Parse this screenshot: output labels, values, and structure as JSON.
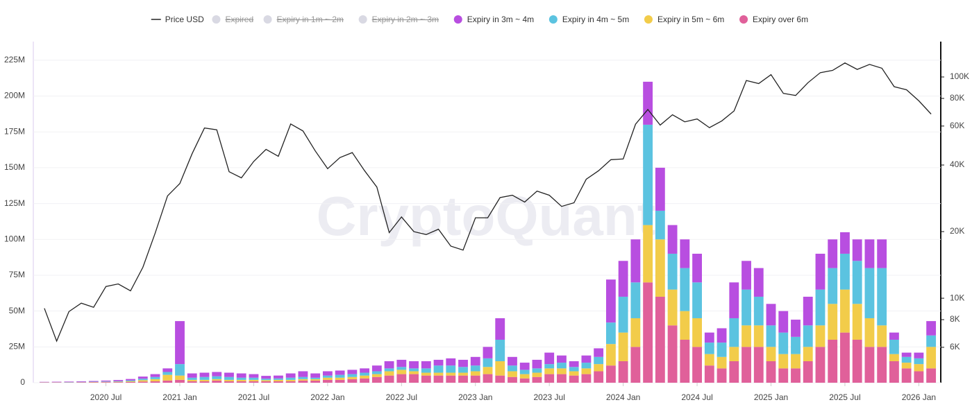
{
  "chart_data": {
    "type": "stacked-bar-line",
    "watermark": "CryptoQuant",
    "x": [
      "2020-02",
      "2020-03",
      "2020-04",
      "2020-05",
      "2020-06",
      "2020-07",
      "2020-08",
      "2020-09",
      "2020-10",
      "2020-11",
      "2020-12",
      "2021-01",
      "2021-02",
      "2021-03",
      "2021-04",
      "2021-05",
      "2021-06",
      "2021-07",
      "2021-08",
      "2021-09",
      "2021-10",
      "2021-11",
      "2021-12",
      "2022-01",
      "2022-02",
      "2022-03",
      "2022-04",
      "2022-05",
      "2022-06",
      "2022-07",
      "2022-08",
      "2022-09",
      "2022-10",
      "2022-11",
      "2022-12",
      "2023-01",
      "2023-02",
      "2023-03",
      "2023-04",
      "2023-05",
      "2023-06",
      "2023-07",
      "2023-08",
      "2023-09",
      "2023-10",
      "2023-11",
      "2023-12",
      "2024-01",
      "2024-02",
      "2024-03",
      "2024-04",
      "2024-05",
      "2024-06",
      "2024-07",
      "2024-08",
      "2024-09",
      "2024-10",
      "2024-11",
      "2024-12",
      "2025-01",
      "2025-02",
      "2025-03",
      "2025-04",
      "2025-05",
      "2025-06",
      "2025-07",
      "2025-08",
      "2025-09",
      "2025-10",
      "2025-11",
      "2025-12",
      "2026-01",
      "2026-02"
    ],
    "xticks": [
      {
        "value": "2020-07",
        "label": "2020 Jul"
      },
      {
        "value": "2021-01",
        "label": "2021 Jan"
      },
      {
        "value": "2021-07",
        "label": "2021 Jul"
      },
      {
        "value": "2022-01",
        "label": "2022 Jan"
      },
      {
        "value": "2022-07",
        "label": "2022 Jul"
      },
      {
        "value": "2023-01",
        "label": "2023 Jan"
      },
      {
        "value": "2023-07",
        "label": "2023 Jul"
      },
      {
        "value": "2024-01",
        "label": "2024 Jan"
      },
      {
        "value": "2024-07",
        "label": "2024 Jul"
      },
      {
        "value": "2025-01",
        "label": "2025 Jan"
      },
      {
        "value": "2025-07",
        "label": "2025 Jul"
      },
      {
        "value": "2026-01",
        "label": "2026 Jan"
      }
    ],
    "ylim": [
      0,
      238
    ],
    "yticks": [
      0,
      {
        "value": 25,
        "label": "25M"
      },
      {
        "value": 50,
        "label": "50M"
      },
      {
        "value": 75,
        "label": "75M"
      },
      {
        "value": 100,
        "label": "100M"
      },
      {
        "value": 125,
        "label": "125M"
      },
      {
        "value": 150,
        "label": "150M"
      },
      {
        "value": 175,
        "label": "175M"
      },
      {
        "value": 200,
        "label": "200M"
      },
      {
        "value": 225,
        "label": "225M"
      }
    ],
    "y2lim": [
      4150,
      144500
    ],
    "y2_log": true,
    "y2ticks": [
      {
        "value": 6000,
        "label": "6K"
      },
      {
        "value": 8000,
        "label": "8K"
      },
      {
        "value": 10000,
        "label": "10K"
      },
      {
        "value": 20000,
        "label": "20K"
      },
      {
        "value": 40000,
        "label": "40K"
      },
      {
        "value": 60000,
        "label": "60K"
      },
      {
        "value": 80000,
        "label": "80K"
      },
      {
        "value": 100000,
        "label": "100K"
      }
    ],
    "grid": true,
    "legend": "top",
    "series": [
      {
        "name": "Price USD",
        "kind": "line",
        "axis": "y2",
        "color": "#222222",
        "visible": true,
        "values": [
          9000,
          6400,
          8700,
          9500,
          9100,
          11300,
          11600,
          10800,
          13800,
          19700,
          29000,
          33000,
          45000,
          58800,
          57700,
          37300,
          35000,
          41500,
          47100,
          43800,
          61300,
          57000,
          46300,
          38500,
          43200,
          45500,
          37700,
          31800,
          19800,
          23300,
          20000,
          19400,
          20500,
          17200,
          16500,
          23100,
          23100,
          28500,
          29200,
          27200,
          30500,
          29200,
          26000,
          27000,
          34500,
          37700,
          42300,
          42600,
          61200,
          71300,
          60600,
          67500,
          62700,
          64600,
          59000,
          63300,
          70200,
          96400,
          93400,
          102400,
          84300,
          82500,
          94200,
          104600,
          107100,
          115700,
          108200,
          114000,
          109500,
          90400,
          87500,
          78000,
          68000
        ]
      },
      {
        "name": "Expired",
        "kind": "bar",
        "color": "#d9d9e3",
        "visible": false
      },
      {
        "name": "Expiry in 1m ~ 2m",
        "kind": "bar",
        "color": "#d9d9e3",
        "visible": false
      },
      {
        "name": "Expiry in 2m ~ 3m",
        "kind": "bar",
        "color": "#d9d9e3",
        "visible": false
      },
      {
        "name": "Expiry in 3m ~ 4m",
        "kind": "bar",
        "color": "#b84ee0",
        "visible": true,
        "stack_order": 3,
        "values": [
          0.2,
          0.3,
          0.3,
          0.4,
          0.5,
          0.6,
          0.8,
          1,
          1.5,
          2,
          2.5,
          30,
          3,
          3,
          3,
          3,
          3,
          2.5,
          2,
          2,
          3,
          4,
          3,
          3,
          3,
          3,
          3,
          4,
          5,
          5,
          5,
          5,
          4,
          5,
          5,
          6,
          8,
          15,
          6,
          5,
          6,
          8,
          5,
          4,
          5,
          6,
          30,
          25,
          30,
          30,
          30,
          20,
          20,
          20,
          7,
          10,
          25,
          20,
          20,
          15,
          15,
          12,
          20,
          25,
          20,
          15,
          15,
          20,
          20,
          5,
          3,
          4,
          10
        ]
      },
      {
        "name": "Expiry in 4m ~ 5m",
        "kind": "bar",
        "color": "#5bc3e0",
        "visible": true,
        "stack_order": 2,
        "values": [
          0.1,
          0.1,
          0.2,
          0.2,
          0.2,
          0.3,
          0.4,
          0.6,
          1,
          1.5,
          2,
          8,
          1.5,
          2,
          2,
          2,
          1.5,
          1.5,
          1,
          1,
          1.5,
          1.5,
          1,
          1.5,
          2,
          2,
          2,
          2,
          2,
          2,
          2,
          3,
          5,
          5,
          4,
          4,
          6,
          15,
          4,
          3,
          3,
          3,
          4,
          3,
          4,
          5,
          15,
          25,
          25,
          70,
          20,
          25,
          30,
          25,
          8,
          10,
          20,
          25,
          20,
          15,
          15,
          12,
          15,
          25,
          25,
          25,
          30,
          35,
          40,
          10,
          4,
          4,
          8
        ]
      },
      {
        "name": "Expiry in 5m ~ 6m",
        "kind": "bar",
        "color": "#f2cc4a",
        "visible": true,
        "stack_order": 1,
        "values": [
          0.1,
          0.1,
          0.1,
          0.1,
          0.2,
          0.2,
          0.3,
          0.5,
          1,
          1.5,
          4,
          3,
          1,
          1,
          1,
          1,
          1,
          1,
          0.8,
          1,
          1,
          1,
          1,
          1.5,
          1.5,
          1.5,
          2,
          2,
          3,
          3,
          2,
          2,
          2,
          2,
          2,
          3,
          5,
          10,
          4,
          3,
          3,
          4,
          4,
          3,
          4,
          5,
          15,
          20,
          20,
          40,
          40,
          25,
          20,
          20,
          8,
          8,
          10,
          15,
          15,
          10,
          10,
          10,
          10,
          15,
          25,
          30,
          25,
          20,
          15,
          5,
          4,
          5,
          15
        ]
      },
      {
        "name": "Expiry over 6m",
        "kind": "bar",
        "color": "#e0609a",
        "visible": true,
        "stack_order": 0,
        "values": [
          0.2,
          0.2,
          0.2,
          0.3,
          0.3,
          0.4,
          0.4,
          0.5,
          0.8,
          1,
          1.5,
          2,
          1,
          1,
          1.5,
          1,
          1,
          1,
          1,
          1,
          1,
          1.5,
          1.5,
          2,
          2,
          2.5,
          3,
          4,
          5,
          6,
          6,
          5,
          5,
          5,
          5,
          5,
          6,
          5,
          4,
          3,
          4,
          6,
          6,
          5,
          6,
          8,
          12,
          15,
          25,
          70,
          60,
          40,
          30,
          25,
          12,
          10,
          15,
          25,
          25,
          15,
          10,
          10,
          15,
          25,
          30,
          35,
          30,
          25,
          25,
          15,
          10,
          8,
          10
        ]
      }
    ]
  }
}
